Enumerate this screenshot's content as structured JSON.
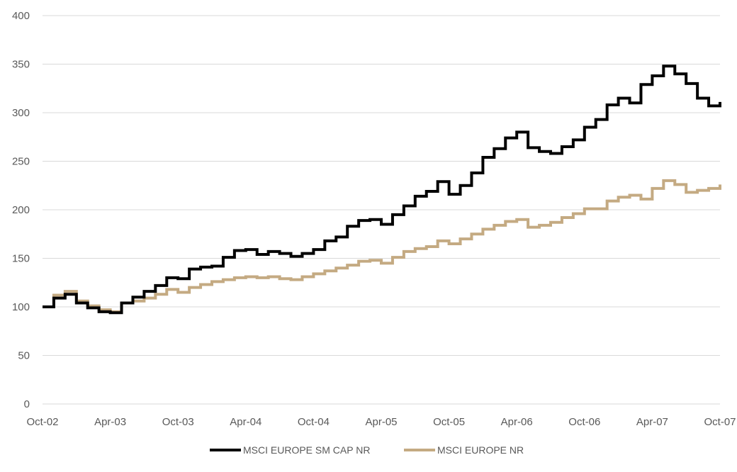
{
  "chart_data": {
    "type": "line",
    "title": "",
    "xlabel": "",
    "ylabel": "",
    "ylim": [
      0,
      400
    ],
    "yticks": [
      0,
      50,
      100,
      150,
      200,
      250,
      300,
      350,
      400
    ],
    "x_tick_labels": [
      "Oct-02",
      "Apr-03",
      "Oct-03",
      "Apr-04",
      "Oct-04",
      "Apr-05",
      "Oct-05",
      "Apr-06",
      "Oct-06",
      "Apr-07",
      "Oct-07"
    ],
    "grid": true,
    "legend_position": "bottom",
    "x": [
      "Oct-02",
      "Nov-02",
      "Dec-02",
      "Jan-03",
      "Feb-03",
      "Mar-03",
      "Apr-03",
      "May-03",
      "Jun-03",
      "Jul-03",
      "Aug-03",
      "Sep-03",
      "Oct-03",
      "Nov-03",
      "Dec-03",
      "Jan-04",
      "Feb-04",
      "Mar-04",
      "Apr-04",
      "May-04",
      "Jun-04",
      "Jul-04",
      "Aug-04",
      "Sep-04",
      "Oct-04",
      "Nov-04",
      "Dec-04",
      "Jan-05",
      "Feb-05",
      "Mar-05",
      "Apr-05",
      "May-05",
      "Jun-05",
      "Jul-05",
      "Aug-05",
      "Sep-05",
      "Oct-05",
      "Nov-05",
      "Dec-05",
      "Jan-06",
      "Feb-06",
      "Mar-06",
      "Apr-06",
      "May-06",
      "Jun-06",
      "Jul-06",
      "Aug-06",
      "Sep-06",
      "Oct-06",
      "Nov-06",
      "Dec-06",
      "Jan-07",
      "Feb-07",
      "Mar-07",
      "Apr-07",
      "May-07",
      "Jun-07",
      "Jul-07",
      "Aug-07",
      "Sep-07",
      "Oct-07"
    ],
    "series": [
      {
        "name": "MSCI EUROPE SM CAP NR",
        "color": "#000000",
        "values": [
          100,
          109,
          113,
          104,
          99,
          95,
          94,
          104,
          110,
          116,
          122,
          130,
          129,
          139,
          141,
          142,
          151,
          158,
          159,
          154,
          157,
          155,
          152,
          155,
          159,
          168,
          172,
          183,
          189,
          190,
          185,
          195,
          204,
          214,
          219,
          229,
          216,
          225,
          238,
          254,
          263,
          274,
          280,
          264,
          260,
          258,
          265,
          272,
          285,
          293,
          308,
          315,
          310,
          329,
          338,
          348,
          340,
          330,
          315,
          307,
          311
        ]
      },
      {
        "name": "MSCI EUROPE NR",
        "color": "#c4aa82",
        "values": [
          100,
          112,
          116,
          106,
          101,
          97,
          95,
          104,
          106,
          109,
          113,
          118,
          115,
          120,
          123,
          126,
          128,
          130,
          131,
          130,
          131,
          129,
          128,
          131,
          134,
          137,
          140,
          143,
          147,
          148,
          145,
          151,
          157,
          160,
          162,
          168,
          165,
          170,
          175,
          180,
          184,
          188,
          190,
          182,
          184,
          187,
          192,
          196,
          201,
          201,
          209,
          213,
          215,
          211,
          222,
          230,
          226,
          218,
          220,
          222,
          226
        ]
      }
    ]
  }
}
